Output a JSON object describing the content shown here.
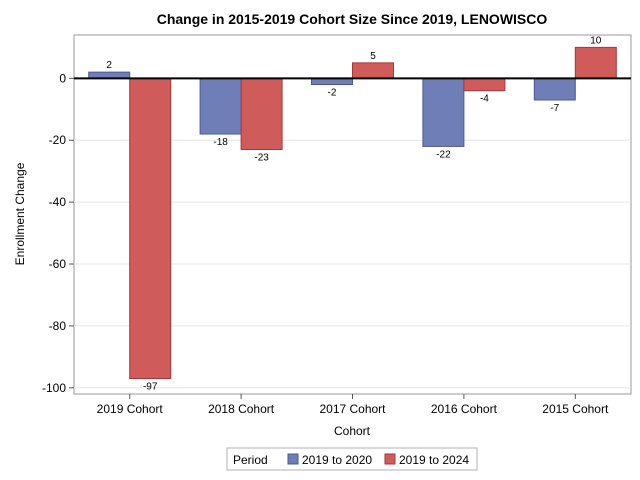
{
  "chart_data": {
    "type": "bar",
    "title": "Change in 2015-2019 Cohort Size Since 2019, LENOWISCO",
    "xlabel": "Cohort",
    "ylabel": "Enrollment Change",
    "categories": [
      "2019 Cohort",
      "2018 Cohort",
      "2017 Cohort",
      "2016 Cohort",
      "2015 Cohort"
    ],
    "series": [
      {
        "name": "2019 to 2020",
        "values": [
          2,
          -18,
          -2,
          -22,
          -7
        ],
        "color": "#6F7EB7",
        "stroke": "#4B5A94"
      },
      {
        "name": "2019 to 2024",
        "values": [
          -97,
          -23,
          5,
          -4,
          10
        ],
        "color": "#D05B5B",
        "stroke": "#A33A3A"
      }
    ],
    "ylim": [
      -102,
      14
    ],
    "yticks": [
      0,
      -20,
      -40,
      -60,
      -80,
      -100
    ],
    "grid": true,
    "legend": {
      "title": "Period",
      "position": "bottom-center"
    }
  }
}
